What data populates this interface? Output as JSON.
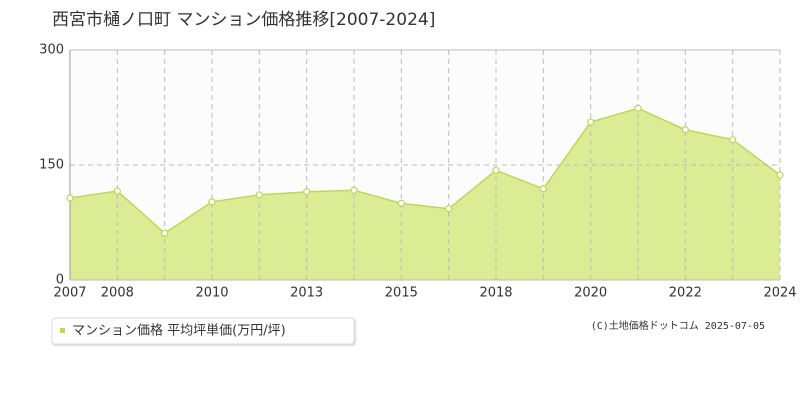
{
  "chart_data": {
    "type": "area",
    "title": "西宮市樋ノ口町 マンション価格推移[2007-2024]",
    "categories": [
      "2007",
      "2008",
      null,
      "2010",
      null,
      "2013",
      null,
      "2015",
      null,
      "2018",
      null,
      "2020",
      null,
      "2022",
      null,
      "2024"
    ],
    "series": [
      {
        "name": "マンション価格 平均坪単価(万円/坪)",
        "color": "#b8d95a",
        "values": [
          107,
          116,
          61,
          102,
          111,
          115,
          117,
          100,
          93,
          143,
          119,
          206,
          224,
          196,
          183,
          137
        ]
      }
    ],
    "ylim": [
      0,
      300
    ],
    "yticks": [
      0,
      150,
      300
    ],
    "grid": true,
    "credit": "(C)土地価格ドットコム 2025-07-05"
  }
}
